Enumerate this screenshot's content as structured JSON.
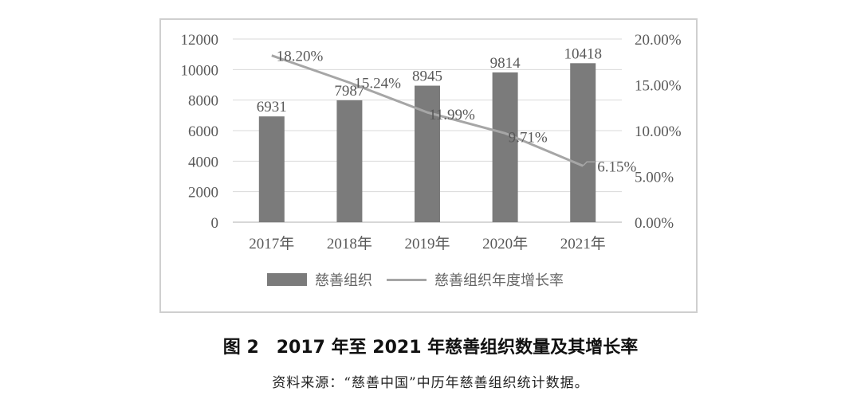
{
  "chart_data": {
    "type": "bar",
    "categories": [
      "2017年",
      "2018年",
      "2019年",
      "2020年",
      "2021年"
    ],
    "series": [
      {
        "name": "慈善组织",
        "type": "bar",
        "axis": "left",
        "values": [
          6931,
          7987,
          8945,
          9814,
          10418
        ],
        "labels": [
          "6931",
          "7987",
          "8945",
          "9814",
          "10418"
        ],
        "color": "#7b7b7b"
      },
      {
        "name": "慈善组织年度增长率",
        "type": "line",
        "axis": "right",
        "values": [
          18.2,
          15.24,
          11.99,
          9.71,
          6.15
        ],
        "labels": [
          "18.20%",
          "15.24%",
          "11.99%",
          "9.71%",
          "6.15%"
        ],
        "color": "#a6a6a6"
      }
    ],
    "y_left": {
      "min": 0,
      "max": 12000,
      "ticks": [
        "0",
        "2000",
        "4000",
        "6000",
        "8000",
        "10000",
        "12000"
      ]
    },
    "y_right": {
      "min": 0,
      "max": 20,
      "ticks": [
        "0.00%",
        "5.00%",
        "10.00%",
        "15.00%",
        "20.00%"
      ]
    },
    "grid": true,
    "legend_position": "bottom"
  },
  "caption": "图 2　2017 年至 2021 年慈善组织数量及其增长率",
  "source": "资料来源：“慈善中国”中历年慈善组织统计数据。"
}
